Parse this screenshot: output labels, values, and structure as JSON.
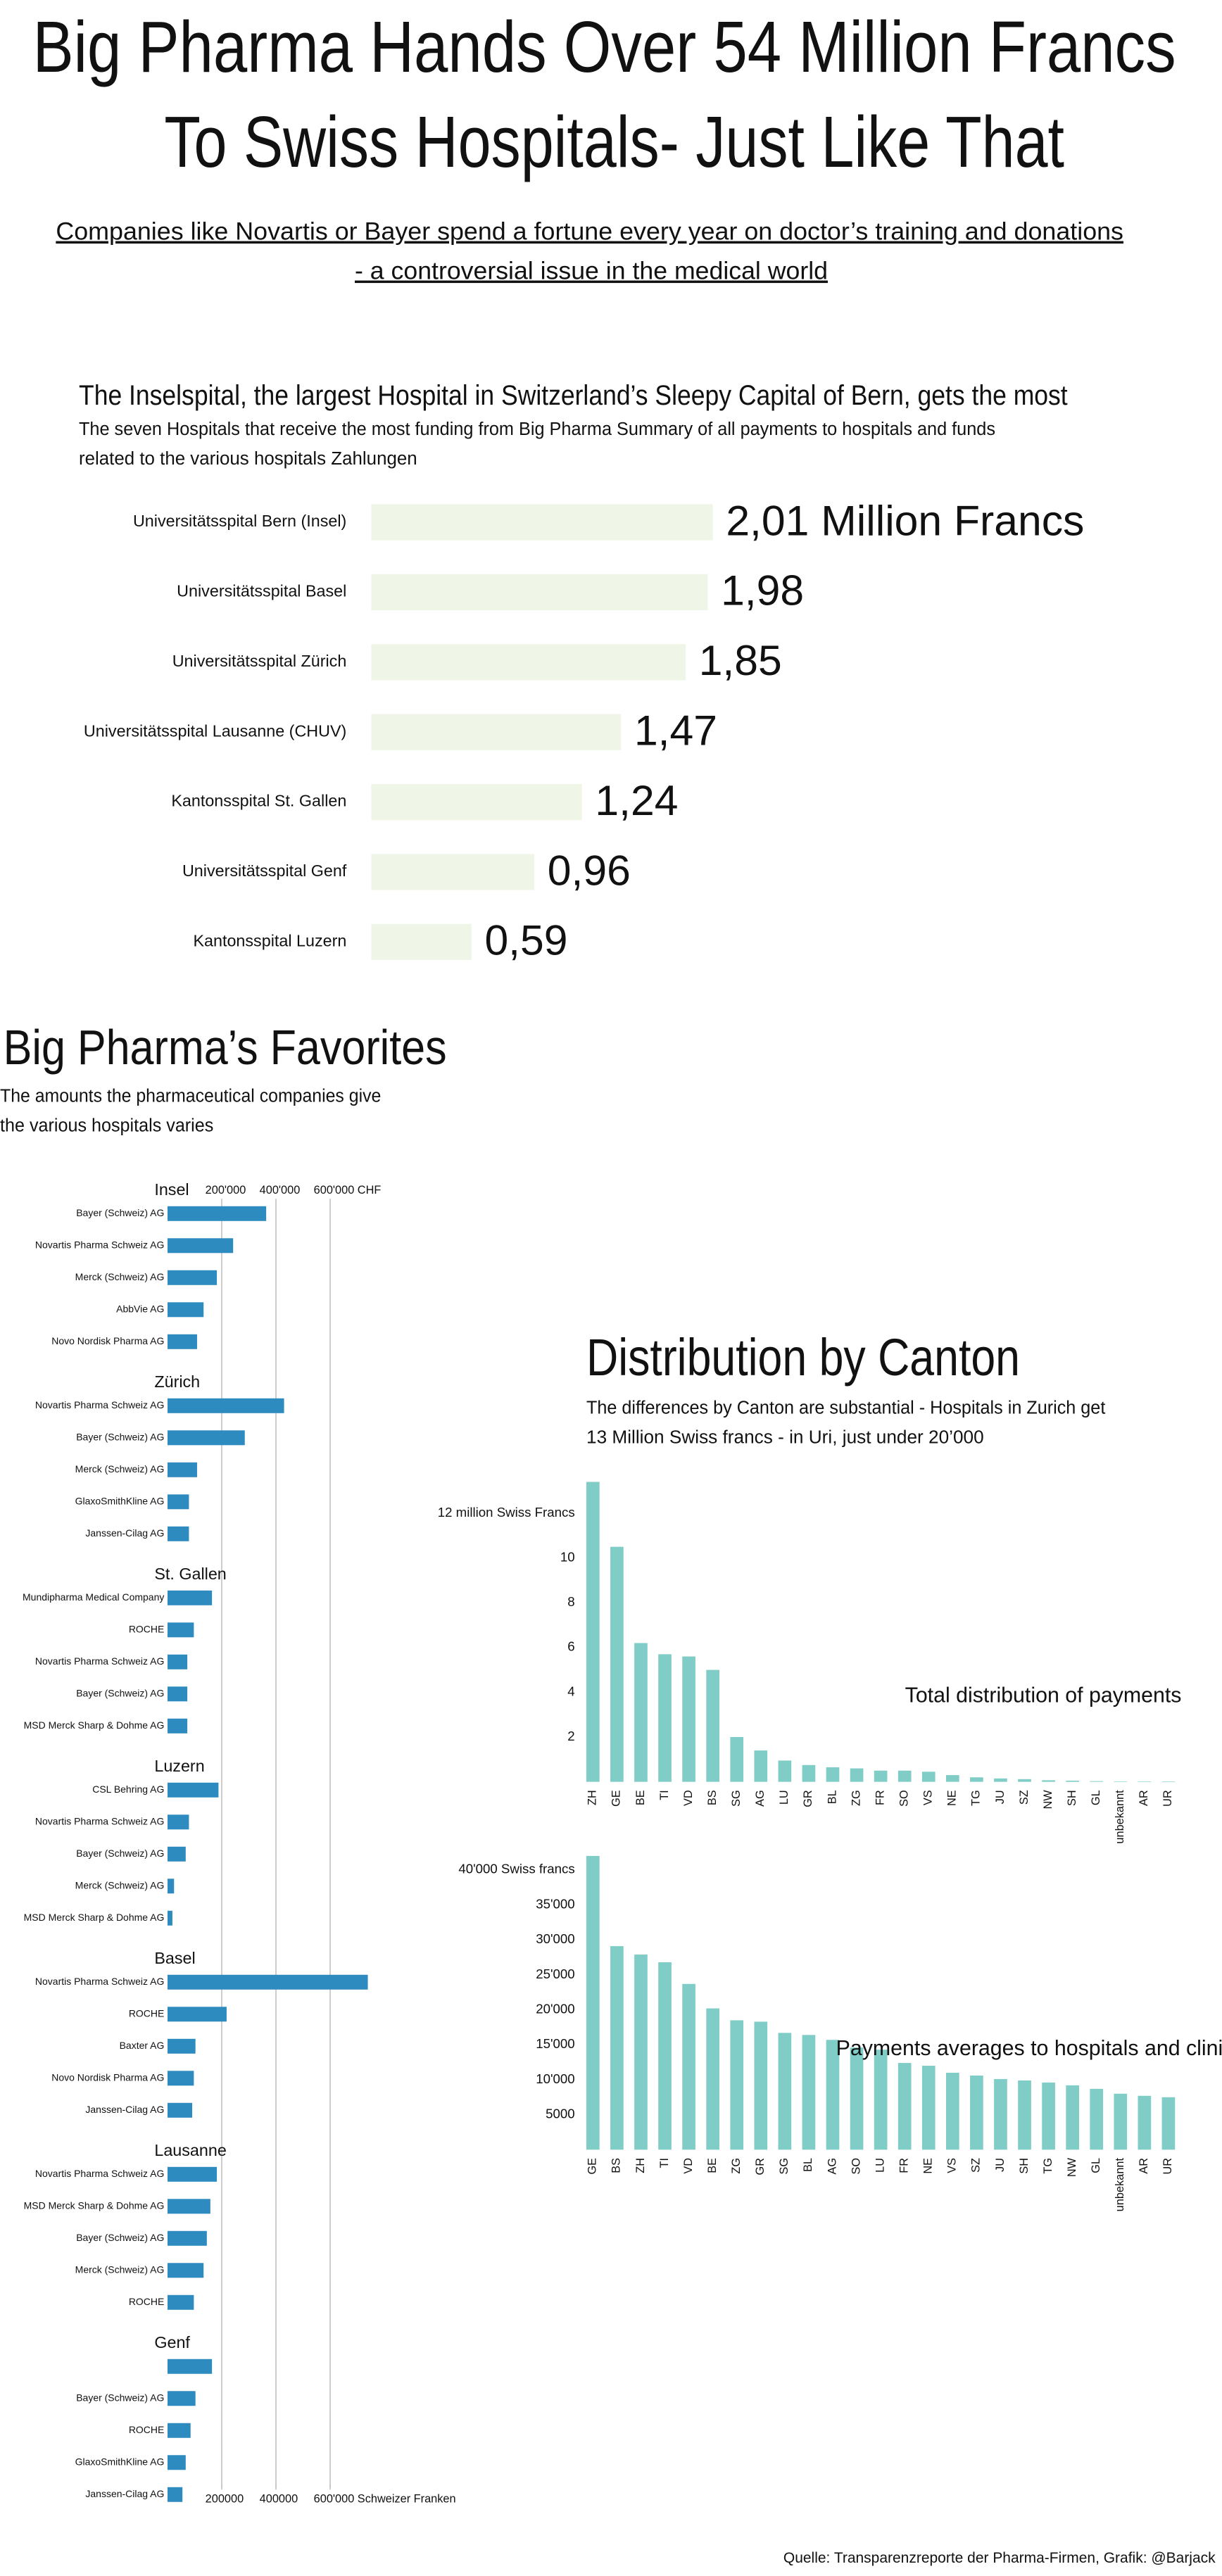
{
  "header": {
    "title": [
      "Big Pharma Hands Over 54 Million Francs",
      "To Swiss Hospitals- Just Like That"
    ],
    "subtitle": [
      "Companies like Novartis or Bayer spend a fortune every year on doctor’s training and donations",
      "- a controversial issue in the medical world"
    ]
  },
  "chart_data": [
    {
      "type": "hbar",
      "title": "The Inselspital, the largest Hospital in Switzerland’s Sleepy Capital of Bern, gets the most",
      "subtitle": [
        "The seven Hospitals that receive the most funding from Big Pharma Summary of all payments to hospitals and funds",
        "related to the various hospitals  Zahlungen"
      ],
      "categories": [
        "Universitätsspital Bern (Insel)",
        "Universitätsspital Basel",
        "Universitätsspital Zürich",
        "Universitätsspital Lausanne (CHUV)",
        "Kantonsspital St. Gallen",
        "Universitätsspital Genf",
        "Kantonsspital Luzern"
      ],
      "values": [
        2.01,
        1.98,
        1.85,
        1.47,
        1.24,
        0.96,
        0.59
      ],
      "value_labels": [
        "2,01 Million Francs",
        "1,98",
        "1,85",
        "1,47",
        "1,24",
        "0,96",
        "0,59"
      ],
      "color": "#f0f6e7"
    },
    {
      "type": "grouped",
      "title": "Big Pharma’s Favorites",
      "subtitle": [
        "The amounts the pharmaceutical companies give",
        "the various hospitals varies"
      ],
      "groups": [
        {
          "name": "Insel",
          "categories": [
            "Bayer (Schweiz) AG",
            "Novartis Pharma Schweiz AG",
            "Merck (Schweiz) AG",
            "AbbVie AG",
            "Novo Nordisk Pharma AG"
          ],
          "values": [
            364000,
            242000,
            182000,
            133000,
            109000
          ]
        },
        {
          "name": "Zürich",
          "categories": [
            "Novartis Pharma Schweiz AG",
            "Bayer (Schweiz) AG",
            "Merck (Schweiz) AG",
            "GlaxoSmithKline AG",
            "Janssen-Cilag AG"
          ],
          "values": [
            430000,
            285000,
            109000,
            79000,
            79000
          ]
        },
        {
          "name": "St. Gallen",
          "categories": [
            "Mundipharma Medical Company",
            "ROCHE",
            "Novartis Pharma Schweiz AG",
            "Bayer (Schweiz) AG",
            "MSD Merck Sharp & Dohme AG"
          ],
          "values": [
            164000,
            97000,
            73000,
            73000,
            73000
          ]
        },
        {
          "name": "Luzern",
          "categories": [
            "CSL Behring AG",
            "Novartis Pharma Schweiz AG",
            "Bayer (Schweiz) AG",
            "Merck (Schweiz) AG",
            "MSD Merck Sharp & Dohme AG"
          ],
          "values": [
            188000,
            79000,
            67000,
            24000,
            18000
          ]
        },
        {
          "name": "Basel",
          "categories": [
            "Novartis Pharma Schweiz AG",
            "ROCHE",
            "Baxter AG",
            "Novo Nordisk Pharma AG",
            "Janssen-Cilag AG"
          ],
          "values": [
            739000,
            218000,
            103000,
            97000,
            91000
          ]
        },
        {
          "name": "Lausanne",
          "categories": [
            "Novartis Pharma Schweiz AG",
            "MSD Merck Sharp & Dohme AG",
            "Bayer (Schweiz) AG",
            "Merck (Schweiz) AG",
            "ROCHE"
          ],
          "values": [
            182000,
            158000,
            145000,
            133000,
            97000
          ]
        },
        {
          "name": "Genf",
          "categories": [
            null,
            "Bayer (Schweiz) AG",
            "ROCHE",
            "GlaxoSmithKline AG",
            "Janssen-Cilag AG"
          ],
          "values": [
            164000,
            103000,
            85000,
            67000,
            55000
          ]
        }
      ],
      "xlim": [
        0,
        800000
      ],
      "xticks": [
        {
          "value": 200000,
          "label": "200'000"
        },
        {
          "value": 400000,
          "label": "400'000"
        },
        {
          "value": 600000,
          "label": "600'000 CHF"
        }
      ],
      "xticks_bottom": [
        200000,
        400000,
        {
          "value": 600000,
          "label": "600'000 Schweizer Franken"
        }
      ],
      "grid": true,
      "color": "#2e8bc0"
    },
    {
      "type": "column",
      "title": "Distribution by Canton",
      "subtitle": [
        "The differences by Canton are substantial - Hospitals in Zurich get",
        "13 Million Swiss francs - in Uri, just under 20’000"
      ],
      "annotation": "Total distribution of payments",
      "categories": [
        "ZH",
        "GE",
        "BE",
        "TI",
        "VD",
        "BS",
        "SG",
        "AG",
        "LU",
        "GR",
        "BL",
        "ZG",
        "FR",
        "SO",
        "VS",
        "NE",
        "TG",
        "JU",
        "SZ",
        "NW",
        "SH",
        "GL",
        "unbekannt",
        "AR",
        "UR"
      ],
      "values": [
        13.4,
        10.5,
        6.2,
        5.7,
        5.6,
        5.0,
        2.0,
        1.4,
        0.95,
        0.75,
        0.65,
        0.6,
        0.5,
        0.5,
        0.45,
        0.3,
        0.2,
        0.15,
        0.12,
        0.07,
        0.05,
        0.03,
        0.02,
        0.02,
        0.02
      ],
      "ylim": [
        0,
        13.5
      ],
      "yticks": [
        2,
        4,
        6,
        8,
        10,
        {
          "value": 12,
          "label": "12 million Swiss Francs"
        }
      ],
      "color": "#7fcdc6"
    },
    {
      "type": "column",
      "annotation": "Payments averages to hospitals and clinics",
      "categories": [
        "GE",
        "BS",
        "ZH",
        "TI",
        "VD",
        "BE",
        "ZG",
        "GR",
        "SG",
        "BL",
        "AG",
        "SO",
        "LU",
        "FR",
        "NE",
        "VS",
        "SZ",
        "JU",
        "SH",
        "TG",
        "NW",
        "GL",
        "unbekannt",
        "AR",
        "UR"
      ],
      "values": [
        42000,
        29100,
        27900,
        26800,
        23700,
        20200,
        18500,
        18300,
        16700,
        16400,
        15700,
        14600,
        14300,
        12400,
        12000,
        11000,
        10600,
        10100,
        9900,
        9600,
        9200,
        8700,
        8000,
        7700,
        7500
      ],
      "ylim": [
        0,
        42500
      ],
      "yticks": [
        5000,
        {
          "value": 10000,
          "label": "10'000"
        },
        {
          "value": 15000,
          "label": "15'000"
        },
        {
          "value": 20000,
          "label": "20'000"
        },
        {
          "value": 25000,
          "label": "25'000"
        },
        {
          "value": 30000,
          "label": "30'000"
        },
        {
          "value": 35000,
          "label": "35'000"
        },
        {
          "value": 40000,
          "label": "40'000 Swiss francs"
        }
      ],
      "color": "#7fcdc6"
    }
  ],
  "footer": {
    "source": "Quelle: Transparenzreporte der Pharma-Firmen, Grafik: @Barjack"
  }
}
